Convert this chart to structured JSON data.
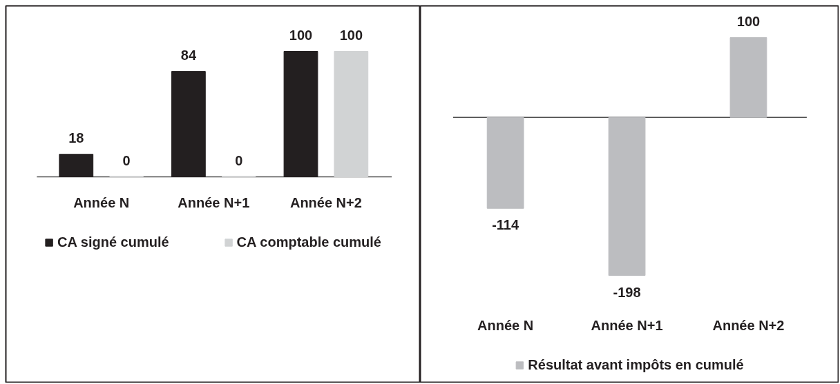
{
  "chart_data": [
    {
      "type": "bar",
      "categories": [
        "Année N",
        "Année N+1",
        "Année N+2"
      ],
      "series": [
        {
          "name": "CA signé cumulé",
          "color": "#231f20",
          "values": [
            18,
            84,
            100
          ]
        },
        {
          "name": "CA comptable cumulé",
          "color": "#d1d3d4",
          "values": [
            0,
            0,
            100
          ]
        }
      ],
      "data_labels": true,
      "legend": "bottom"
    },
    {
      "type": "bar",
      "categories": [
        "Année N",
        "Année N+1",
        "Année N+2"
      ],
      "series": [
        {
          "name": "Résultat avant impôts en cumulé",
          "color": "#bcbdc0",
          "values": [
            -114,
            -198,
            100
          ]
        }
      ],
      "data_labels": true,
      "legend": "bottom"
    }
  ]
}
